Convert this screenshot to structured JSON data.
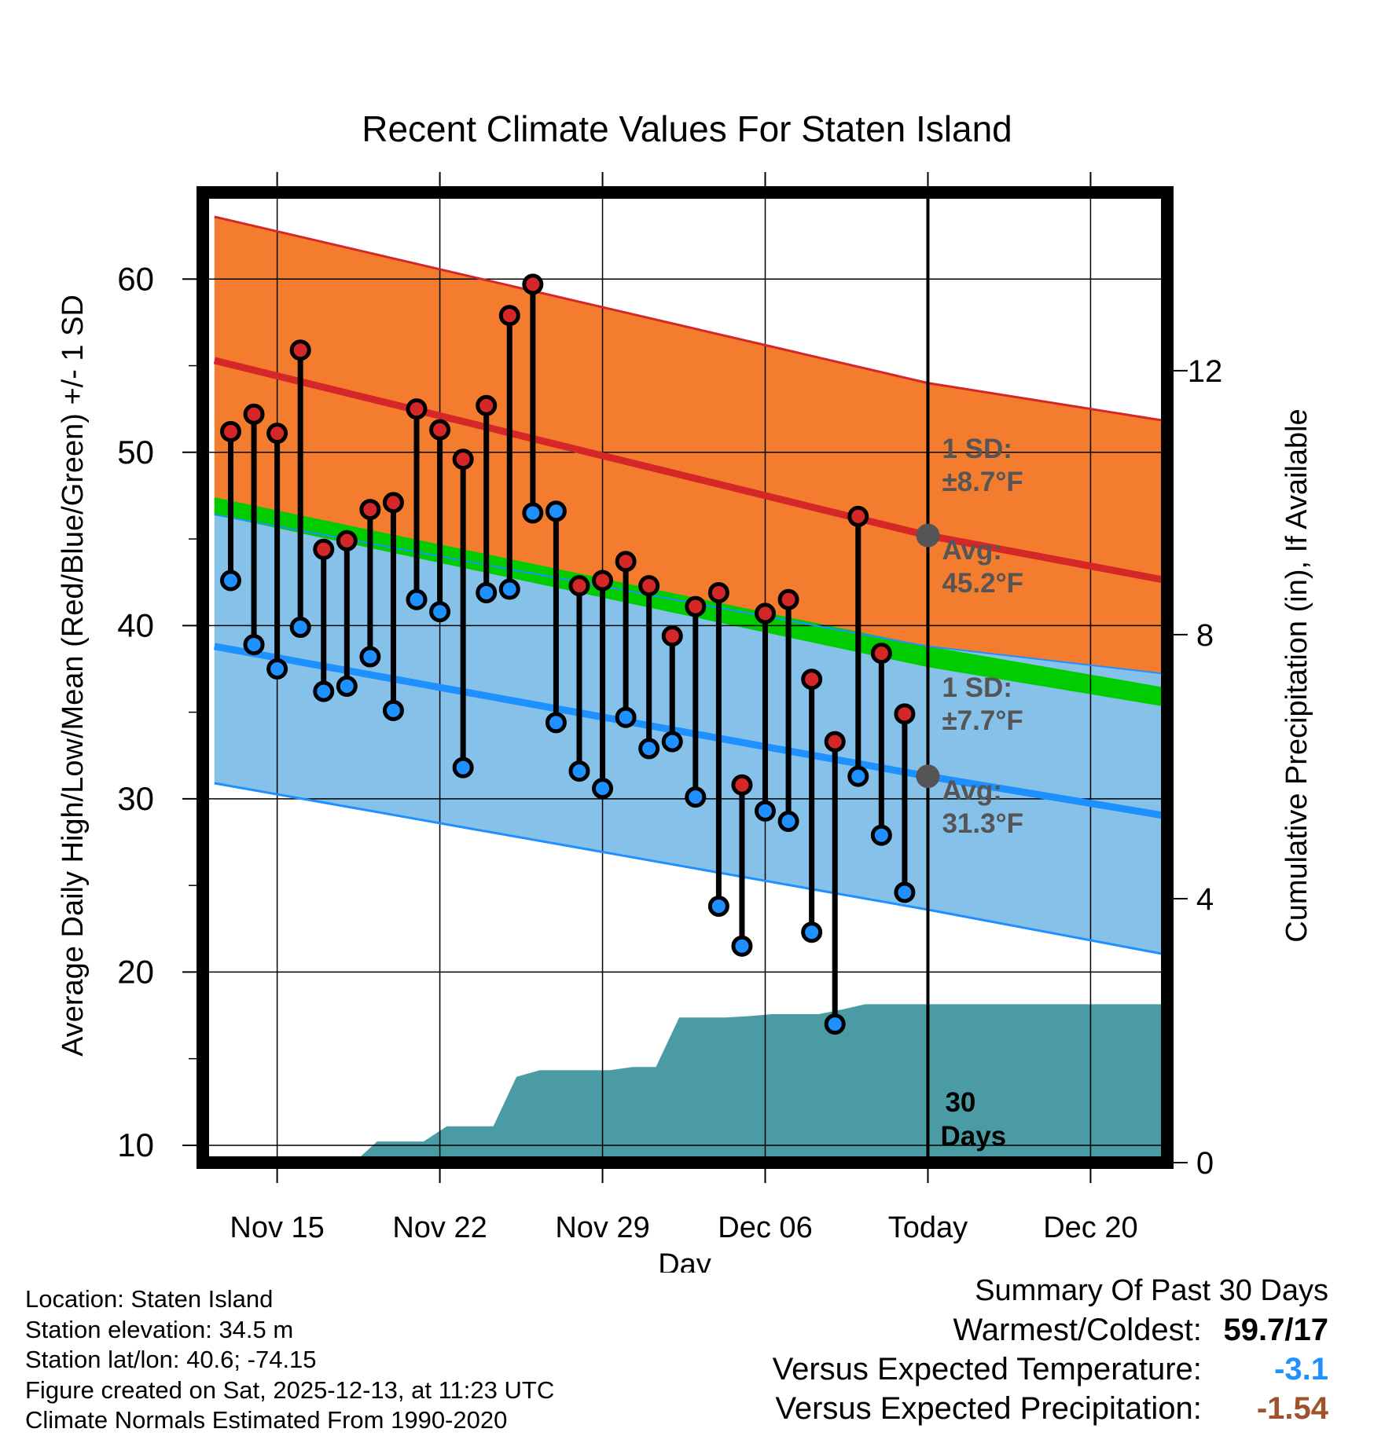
{
  "chart_data": {
    "type": "line",
    "title": "Recent Climate Values For Staten Island",
    "xlabel": "Day",
    "ylabel": "Average Daily High/Low/Mean (Red/Blue/Green) +/- 1 SD",
    "y2label": "Cumulative Precipitation (in), If Available",
    "xlim": [
      0,
      41.5
    ],
    "ylim": [
      9,
      65
    ],
    "y2lim": [
      -0.0,
      14.7
    ],
    "x_ticks": [
      {
        "x": 3.2,
        "label": "Nov 15"
      },
      {
        "x": 10.2,
        "label": "Nov 22"
      },
      {
        "x": 17.2,
        "label": "Nov 29"
      },
      {
        "x": 24.2,
        "label": "Dec 06"
      },
      {
        "x": 31.2,
        "label": "Today"
      },
      {
        "x": 38.2,
        "label": "Dec 20"
      }
    ],
    "y_ticks": [
      10,
      20,
      30,
      40,
      50,
      60
    ],
    "y2_ticks": [
      0,
      4,
      8,
      12
    ],
    "today_x": 31.2,
    "bands": {
      "x": [
        0.5,
        31.2,
        41.5
      ],
      "high_upper": [
        63.6,
        54.0,
        51.8
      ],
      "high_mean": [
        55.3,
        45.2,
        42.6
      ],
      "high_lower": [
        46.6,
        36.5,
        33.9
      ],
      "low_upper": [
        46.4,
        38.8,
        37.2
      ],
      "low_mean": [
        38.8,
        31.3,
        29.0
      ],
      "low_lower": [
        30.9,
        23.6,
        21.0
      ],
      "mean_upper": [
        47.4,
        38.8,
        36.4
      ],
      "mean_lower": [
        46.4,
        37.6,
        35.3
      ]
    },
    "observations": {
      "x": [
        1.2,
        2.2,
        3.2,
        4.2,
        5.2,
        6.2,
        7.2,
        8.2,
        9.2,
        10.2,
        11.2,
        12.2,
        13.2,
        14.2,
        15.2,
        16.2,
        17.2,
        18.2,
        19.2,
        20.2,
        21.2,
        22.2,
        23.2,
        24.2,
        25.2,
        26.2,
        27.2,
        28.2,
        29.2,
        30.2
      ],
      "highs": [
        51.2,
        52.2,
        51.1,
        55.9,
        44.4,
        44.9,
        46.7,
        47.1,
        52.5,
        51.3,
        49.6,
        52.7,
        57.9,
        59.7,
        46.6,
        42.3,
        42.6,
        43.7,
        42.3,
        39.4,
        41.1,
        41.9,
        30.8,
        40.7,
        41.5,
        36.9,
        33.3,
        46.3,
        38.4,
        34.9
      ],
      "lows": [
        42.6,
        38.9,
        37.5,
        39.9,
        36.2,
        36.5,
        38.2,
        35.1,
        41.5,
        40.8,
        31.8,
        41.9,
        42.1,
        46.5,
        34.4,
        31.6,
        30.6,
        34.7,
        32.9,
        33.3,
        30.1,
        23.8,
        21.5,
        29.3,
        28.7,
        22.3,
        17.0,
        31.3,
        27.9,
        24.6
      ],
      "low_color": [
        "#1e90ff",
        "#1e90ff",
        "#1e90ff",
        "#1e90ff",
        "#1e90ff",
        "#1e90ff",
        "#1e90ff",
        "#1e90ff",
        "#1e90ff",
        "#1e90ff",
        "#1e90ff",
        "#1e90ff",
        "#1e90ff",
        "#1e90ff",
        "#1e90ff",
        "#1e90ff",
        "#1e90ff",
        "#1e90ff",
        "#1e90ff",
        "#1e90ff",
        "#1e90ff",
        "#1e90ff",
        "#1e90ff",
        "#1e90ff",
        "#1e90ff",
        "#1e90ff",
        "#1e90ff",
        "#1e90ff",
        "#1e90ff",
        "#1e90ff"
      ],
      "high_color": [
        "#d62728",
        "#d62728",
        "#d62728",
        "#d62728",
        "#d62728",
        "#d62728",
        "#d62728",
        "#d62728",
        "#d62728",
        "#d62728",
        "#d62728",
        "#d62728",
        "#d62728",
        "#d62728",
        "#1e90ff",
        "#d62728",
        "#d62728",
        "#d62728",
        "#d62728",
        "#d62728",
        "#d62728",
        "#d62728",
        "#d62728",
        "#d62728",
        "#d62728",
        "#d62728",
        "#d62728",
        "#d62728",
        "#d62728",
        "#d62728"
      ]
    },
    "precipitation": {
      "x": [
        0.5,
        6.5,
        7.5,
        9.5,
        10.5,
        12.5,
        13.5,
        14.5,
        15.5,
        17.5,
        18.5,
        19.5,
        20.5,
        21.5,
        22.5,
        23.5,
        24.5,
        26.5,
        27.5,
        28.5,
        41.5
      ],
      "values": [
        0,
        0,
        0.32,
        0.32,
        0.55,
        0.55,
        1.3,
        1.4,
        1.4,
        1.4,
        1.45,
        1.45,
        2.2,
        2.2,
        2.2,
        2.22,
        2.25,
        2.25,
        2.32,
        2.4,
        2.4
      ],
      "label": "30\nDays"
    },
    "annotations": {
      "high_sd": {
        "line1": "1 SD:",
        "line2": "±8.7°F"
      },
      "high_avg": {
        "line1": "Avg:",
        "line2": "45.2°F"
      },
      "low_sd": {
        "line1": "1 SD:",
        "line2": "±7.7°F"
      },
      "low_avg": {
        "line1": "Avg:",
        "line2": "31.3°F"
      },
      "precip_label_1": "30",
      "precip_label_2": "Days"
    },
    "colors": {
      "high_band": "#f47c2f",
      "high_line": "#d62728",
      "low_band": "#85c1e9",
      "low_line": "#1e90ff",
      "mean_band": "#00cc00",
      "overlap": "#8b1a1a",
      "precip": "#4a9ba3",
      "annotation": "#555555",
      "frame": "#000000"
    }
  },
  "info": {
    "location": "Location: Staten Island",
    "elevation": "Station elevation: 34.5 m",
    "latlon": "Station lat/lon: 40.6; -74.15",
    "created": "Figure created on Sat, 2025-12-13, at 11:23 UTC",
    "normals": "Climate Normals Estimated From 1990-2020"
  },
  "summary": {
    "title": "Summary Of Past 30 Days",
    "warmest_label": "Warmest/Coldest:",
    "warmest_value": "59.7/17",
    "temp_label": "Versus Expected Temperature:",
    "temp_value": "-3.1",
    "temp_color": "#1e90ff",
    "precip_label": "Versus Expected Precipitation:",
    "precip_value": "-1.54",
    "precip_color": "#a0522d"
  }
}
